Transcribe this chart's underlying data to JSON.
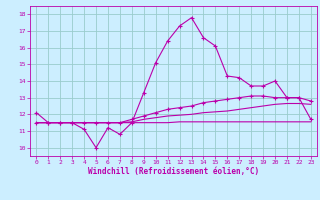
{
  "xlabel": "Windchill (Refroidissement éolien,°C)",
  "bg_color": "#cceeff",
  "line_color": "#bb00aa",
  "grid_color": "#99cccc",
  "ylim": [
    9.5,
    18.5
  ],
  "xlim": [
    -0.5,
    23.5
  ],
  "yticks": [
    10,
    11,
    12,
    13,
    14,
    15,
    16,
    17,
    18
  ],
  "xticks": [
    0,
    1,
    2,
    3,
    4,
    5,
    6,
    7,
    8,
    9,
    10,
    11,
    12,
    13,
    14,
    15,
    16,
    17,
    18,
    19,
    20,
    21,
    22,
    23
  ],
  "curve1_x": [
    0,
    1,
    2,
    3,
    4,
    5,
    6,
    7,
    8,
    9,
    10,
    11,
    12,
    13,
    14,
    15,
    16,
    17,
    18,
    19,
    20,
    21,
    22,
    23
  ],
  "curve1_y": [
    12.1,
    11.5,
    11.5,
    11.5,
    11.1,
    10.0,
    11.2,
    10.8,
    11.5,
    13.3,
    15.1,
    16.4,
    17.3,
    17.8,
    16.6,
    16.1,
    14.3,
    14.2,
    13.7,
    13.7,
    14.0,
    13.0,
    13.0,
    11.7
  ],
  "curve2_x": [
    0,
    1,
    2,
    3,
    4,
    5,
    6,
    7,
    8,
    9,
    10,
    11,
    12,
    13,
    14,
    15,
    16,
    17,
    18,
    19,
    20,
    21,
    22,
    23
  ],
  "curve2_y": [
    11.5,
    11.5,
    11.5,
    11.5,
    11.5,
    11.5,
    11.5,
    11.5,
    11.7,
    11.9,
    12.1,
    12.3,
    12.4,
    12.5,
    12.7,
    12.8,
    12.9,
    13.0,
    13.1,
    13.1,
    13.0,
    13.0,
    13.0,
    12.8
  ],
  "curve3_x": [
    0,
    1,
    2,
    3,
    4,
    5,
    6,
    7,
    8,
    9,
    10,
    11,
    12,
    13,
    14,
    15,
    16,
    17,
    18,
    19,
    20,
    21,
    22,
    23
  ],
  "curve3_y": [
    11.5,
    11.5,
    11.5,
    11.5,
    11.5,
    11.5,
    11.5,
    11.5,
    11.55,
    11.7,
    11.8,
    11.9,
    11.95,
    12.0,
    12.1,
    12.15,
    12.2,
    12.3,
    12.4,
    12.5,
    12.6,
    12.65,
    12.65,
    12.6
  ],
  "curve4_x": [
    0,
    1,
    2,
    3,
    4,
    5,
    6,
    7,
    8,
    9,
    10,
    11,
    12,
    13,
    14,
    15,
    16,
    17,
    18,
    19,
    20,
    21,
    22,
    23
  ],
  "curve4_y": [
    11.5,
    11.5,
    11.5,
    11.5,
    11.5,
    11.5,
    11.5,
    11.5,
    11.5,
    11.5,
    11.5,
    11.5,
    11.55,
    11.55,
    11.55,
    11.55,
    11.55,
    11.55,
    11.55,
    11.55,
    11.55,
    11.55,
    11.55,
    11.55
  ]
}
